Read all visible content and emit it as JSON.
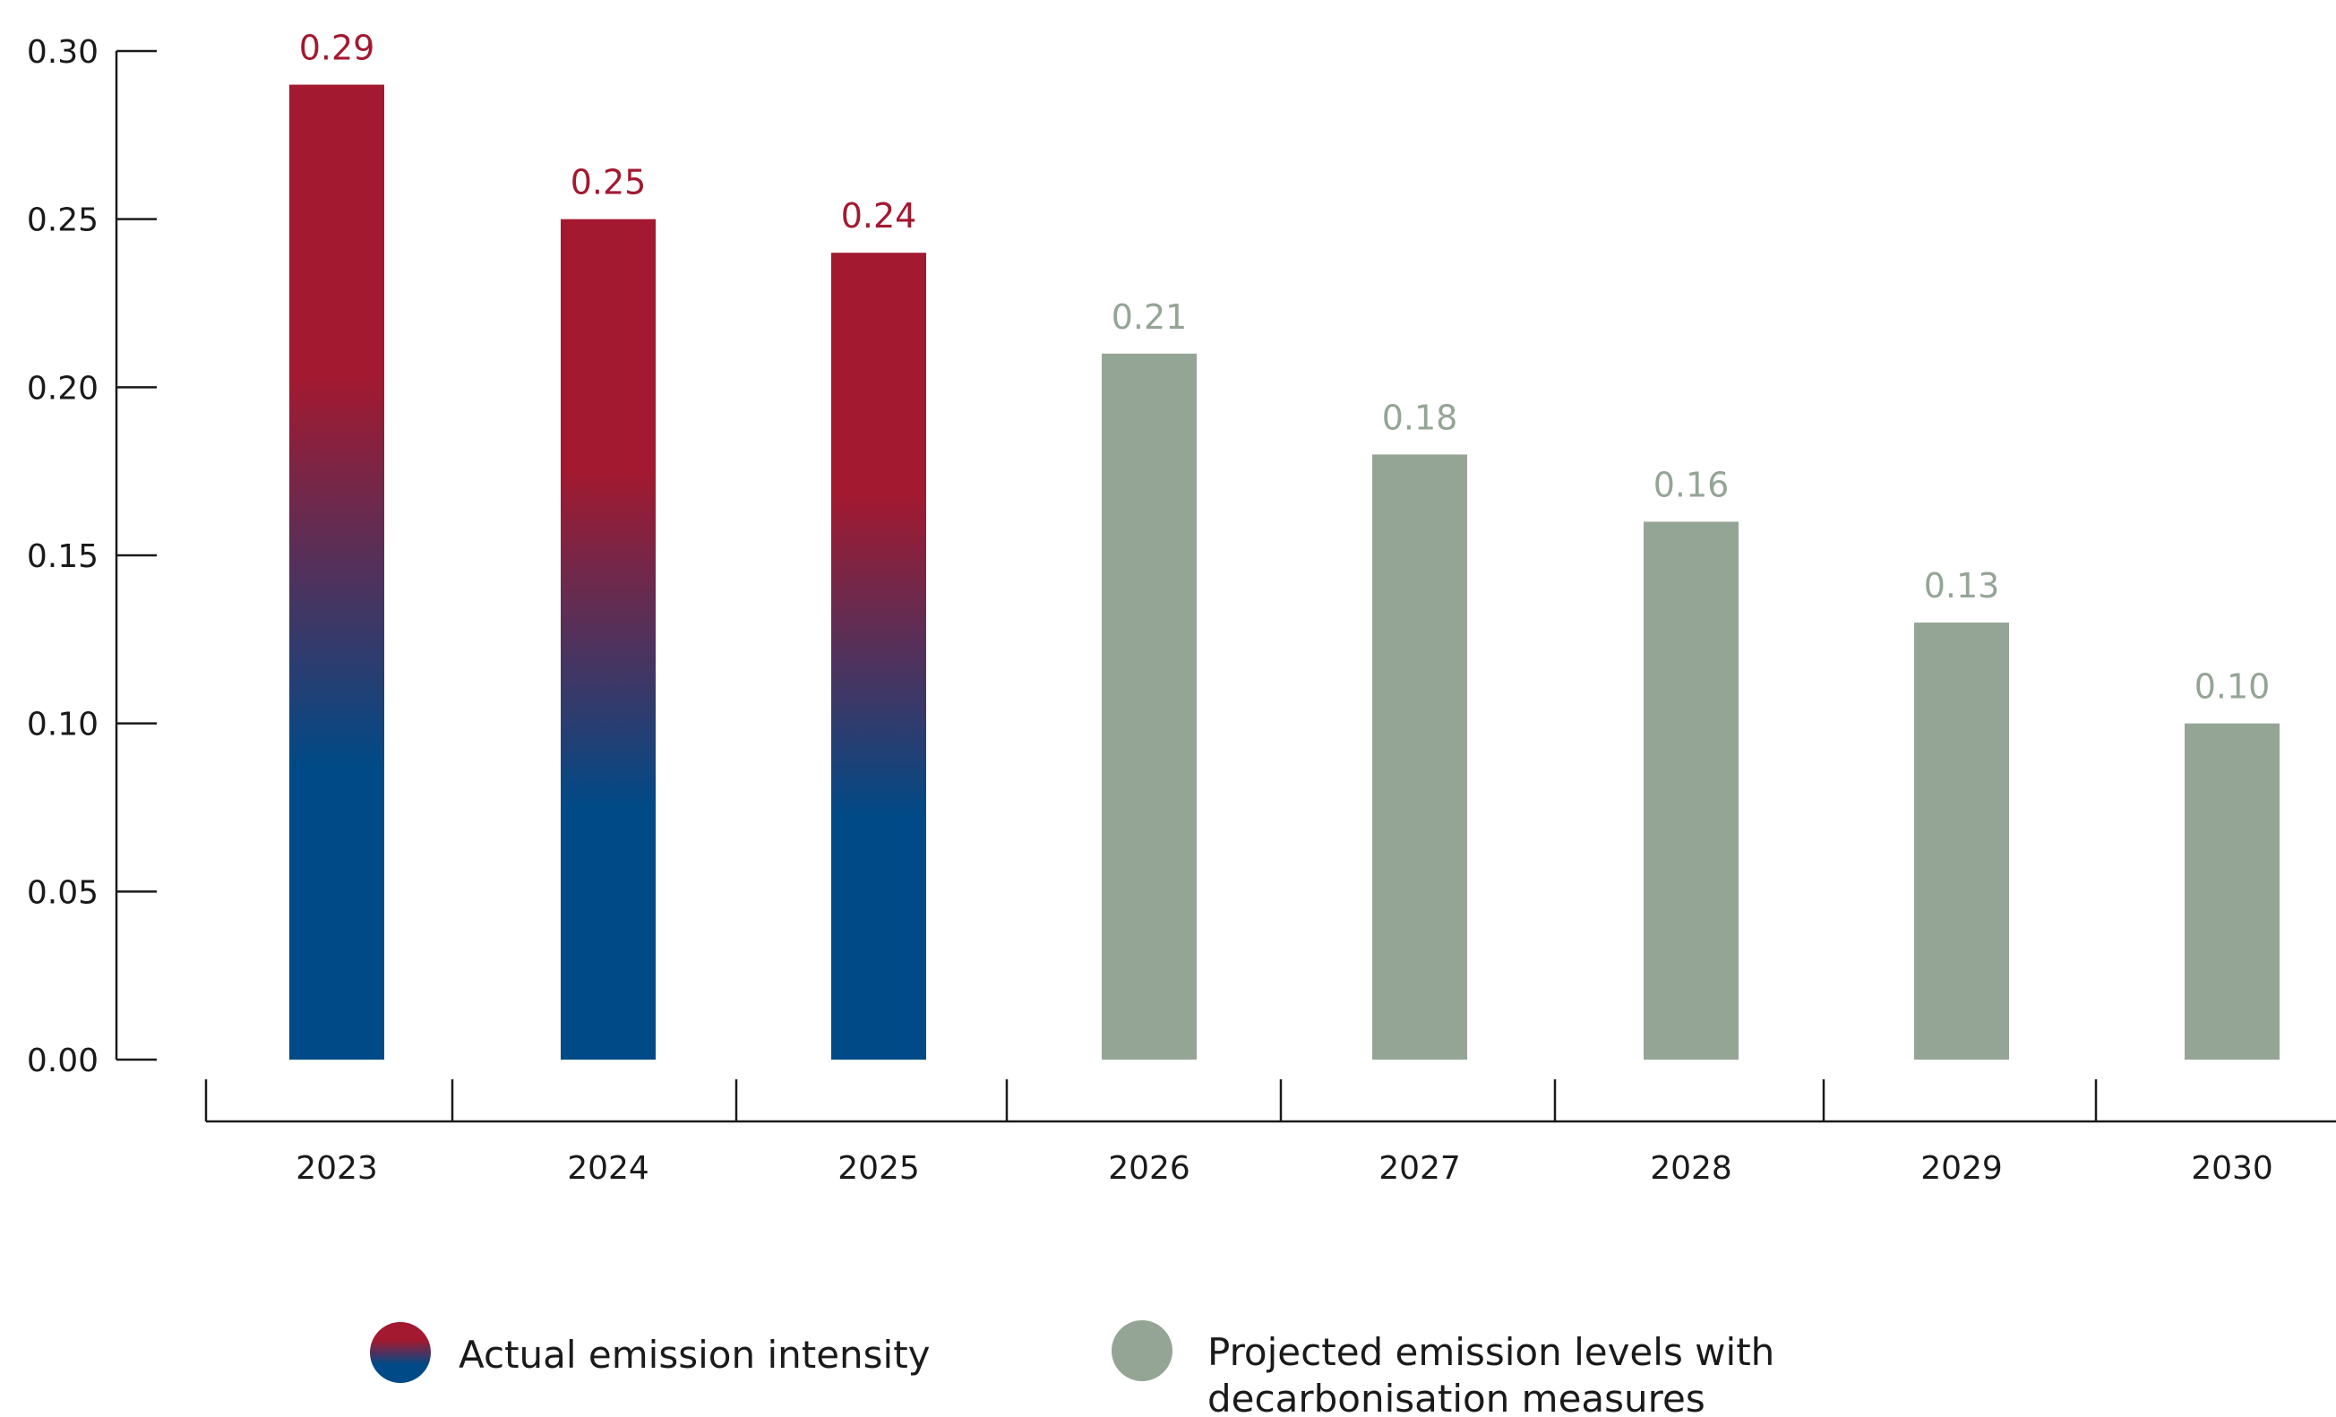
{
  "chart_data": {
    "type": "bar",
    "categories": [
      "2023",
      "2024",
      "2025",
      "2026",
      "2027",
      "2028",
      "2029",
      "2030"
    ],
    "values": [
      0.29,
      0.25,
      0.24,
      0.21,
      0.18,
      0.16,
      0.13,
      0.1
    ],
    "value_labels": [
      "0.29",
      "0.25",
      "0.24",
      "0.21",
      "0.18",
      "0.16",
      "0.13",
      "0.10"
    ],
    "bar_series": [
      "actual",
      "actual",
      "actual",
      "projected",
      "projected",
      "projected",
      "projected",
      "projected"
    ],
    "ylim": [
      0,
      0.3
    ],
    "yticks": [
      "0.00",
      "0.05",
      "0.10",
      "0.15",
      "0.20",
      "0.25",
      "0.30"
    ],
    "grid": false,
    "legend_position": "bottom",
    "legend": [
      {
        "key": "actual",
        "lines": [
          "Actual emission intensity"
        ]
      },
      {
        "key": "projected",
        "lines": [
          "Projected emission levels with",
          "decarbonisation measures"
        ]
      }
    ],
    "colors": {
      "actual_top": "#a31930",
      "actual_bottom": "#004a87",
      "actual_label": "#a31930",
      "projected": "#94a596",
      "projected_label": "#94a596",
      "axis": "#1a1a1a"
    }
  }
}
